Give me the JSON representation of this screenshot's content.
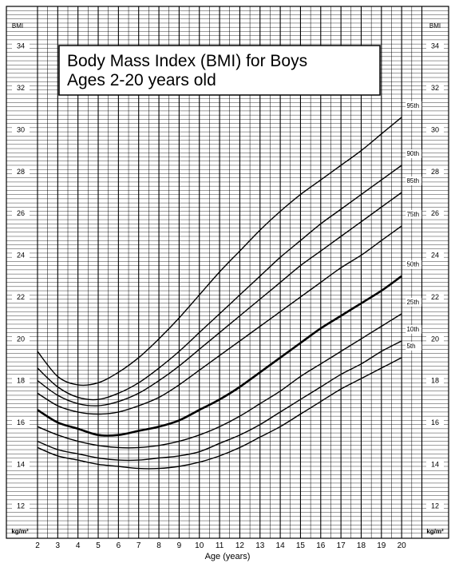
{
  "chart_data": {
    "type": "line",
    "title": "Body Mass Index (BMI) for Boys",
    "subtitle": "Ages 2-20 years old",
    "xlabel": "Age (years)",
    "ylabel_top": "BMI",
    "ylabel_bottom": "kg/m²",
    "xlim": [
      2,
      21
    ],
    "ylim": [
      10.5,
      35.9
    ],
    "x_ticks": [
      2,
      3,
      4,
      5,
      6,
      7,
      8,
      9,
      10,
      11,
      12,
      13,
      14,
      15,
      16,
      17,
      18,
      19,
      20
    ],
    "y_ticks": [
      12,
      14,
      16,
      18,
      20,
      22,
      24,
      26,
      28,
      30,
      32,
      34
    ],
    "grid": true,
    "x": [
      2,
      3,
      4,
      5,
      6,
      7,
      8,
      9,
      10,
      11,
      12,
      13,
      14,
      15,
      16,
      17,
      18,
      19,
      20
    ],
    "series": [
      {
        "name": "95th",
        "bold": false,
        "values": [
          19.4,
          18.2,
          17.8,
          17.9,
          18.4,
          19.1,
          20.0,
          21.0,
          22.1,
          23.2,
          24.2,
          25.2,
          26.1,
          26.9,
          27.6,
          28.3,
          29.0,
          29.8,
          30.6
        ]
      },
      {
        "name": "90th",
        "bold": false,
        "values": [
          18.6,
          17.7,
          17.2,
          17.1,
          17.4,
          17.9,
          18.6,
          19.4,
          20.3,
          21.2,
          22.1,
          23.0,
          23.9,
          24.7,
          25.5,
          26.2,
          26.9,
          27.6,
          28.3
        ]
      },
      {
        "name": "85th",
        "bold": false,
        "values": [
          18.0,
          17.3,
          16.9,
          16.8,
          17.0,
          17.4,
          18.0,
          18.7,
          19.5,
          20.3,
          21.1,
          21.9,
          22.7,
          23.5,
          24.2,
          24.9,
          25.6,
          26.3,
          27.0
        ]
      },
      {
        "name": "75th",
        "bold": false,
        "values": [
          17.4,
          16.8,
          16.5,
          16.4,
          16.5,
          16.8,
          17.2,
          17.8,
          18.5,
          19.2,
          19.9,
          20.6,
          21.3,
          22.0,
          22.7,
          23.4,
          24.0,
          24.7,
          25.4
        ]
      },
      {
        "name": "50th",
        "bold": true,
        "values": [
          16.6,
          16.0,
          15.7,
          15.4,
          15.4,
          15.6,
          15.8,
          16.1,
          16.6,
          17.1,
          17.7,
          18.4,
          19.1,
          19.8,
          20.5,
          21.1,
          21.7,
          22.3,
          23.0
        ]
      },
      {
        "name": "25th",
        "bold": false,
        "values": [
          15.8,
          15.4,
          15.1,
          14.9,
          14.8,
          14.8,
          14.9,
          15.1,
          15.4,
          15.8,
          16.3,
          16.9,
          17.5,
          18.2,
          18.8,
          19.4,
          20.0,
          20.6,
          21.2
        ]
      },
      {
        "name": "10th",
        "bold": false,
        "values": [
          15.1,
          14.7,
          14.5,
          14.3,
          14.2,
          14.2,
          14.3,
          14.4,
          14.6,
          15.0,
          15.4,
          15.9,
          16.5,
          17.1,
          17.7,
          18.3,
          18.8,
          19.4,
          19.9
        ]
      },
      {
        "name": "5th",
        "bold": false,
        "values": [
          14.8,
          14.4,
          14.2,
          14.0,
          13.9,
          13.8,
          13.8,
          13.9,
          14.1,
          14.4,
          14.8,
          15.3,
          15.8,
          16.4,
          17.0,
          17.6,
          18.1,
          18.6,
          19.1
        ]
      }
    ]
  }
}
